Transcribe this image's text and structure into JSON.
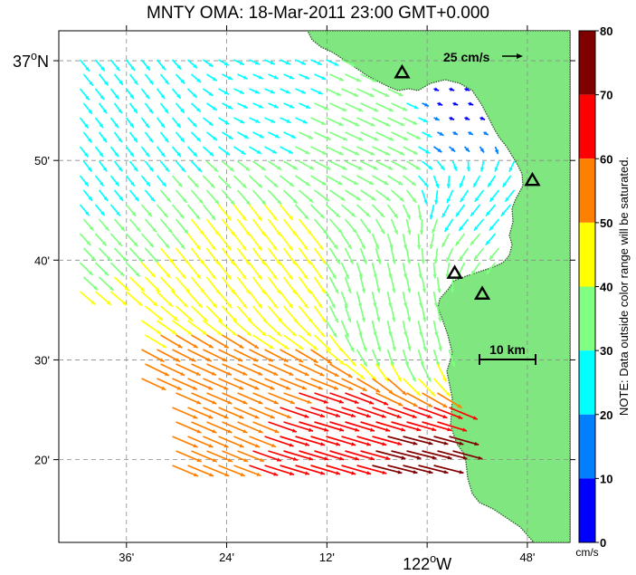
{
  "title": "MNTY OMA: 18-Mar-2011 23:00 GMT+0.000",
  "axes": {
    "lat_labels": [
      {
        "text": "37",
        "deg": true,
        "hemi": "N",
        "lat": 37.0,
        "big": true
      },
      {
        "text": "50'",
        "lat": 36.8333
      },
      {
        "text": "40'",
        "lat": 36.6667
      },
      {
        "text": "30'",
        "lat": 36.5
      },
      {
        "text": "20'",
        "lat": 36.3333
      }
    ],
    "lon_labels": [
      {
        "text": "36'",
        "lon": -122.6
      },
      {
        "text": "24'",
        "lon": -122.4
      },
      {
        "text": "12'",
        "lon": -122.2
      },
      {
        "text": "122",
        "deg": true,
        "hemi": "W",
        "lon": -122.0,
        "big": true
      },
      {
        "text": "48'",
        "lon": -121.8
      }
    ],
    "lon_range": [
      -122.735,
      -121.715
    ],
    "lat_range": [
      36.195,
      37.05
    ],
    "grid": true
  },
  "reference_vector": {
    "label": "25 cm/s",
    "speed_cm_s": 25
  },
  "scale_bar": {
    "label": "10 km",
    "length_km": 10
  },
  "colorbar": {
    "ticks": [
      "0",
      "10",
      "20",
      "30",
      "40",
      "50",
      "60",
      "70",
      "80"
    ],
    "unit": "cm/s",
    "note": "NOTE: Data outside color range will be saturated.",
    "colors": [
      "#0000ff",
      "#0080ff",
      "#00ffff",
      "#80ff80",
      "#ffff00",
      "#ff8000",
      "#ff0000",
      "#800000"
    ]
  },
  "land_color": "#80e680",
  "sites": [
    {
      "lon": -122.05,
      "lat": 36.98
    },
    {
      "lon": -121.79,
      "lat": 36.8
    },
    {
      "lon": -121.945,
      "lat": 36.645
    },
    {
      "lon": -121.89,
      "lat": 36.61
    }
  ],
  "current_vectors": [
    {
      "region": "northwest",
      "lon": -122.7,
      "lat": 36.98,
      "u_cm_s": 14,
      "v_cm_s": -17,
      "speed_cm_s": 30
    },
    {
      "region": "northwest",
      "lon": -122.62,
      "lat": 36.92,
      "u_cm_s": 12,
      "v_cm_s": -16,
      "speed_cm_s": 25
    },
    {
      "region": "north-central",
      "lon": -122.3,
      "lat": 36.96,
      "u_cm_s": 18,
      "v_cm_s": -8,
      "speed_cm_s": 22
    },
    {
      "region": "north-central",
      "lon": -122.15,
      "lat": 36.9,
      "u_cm_s": 24,
      "v_cm_s": -11,
      "speed_cm_s": 40
    },
    {
      "region": "northeast-bay",
      "lon": -121.92,
      "lat": 36.95,
      "u_cm_s": 6,
      "v_cm_s": -2,
      "speed_cm_s": 8
    },
    {
      "region": "east-coast",
      "lon": -121.85,
      "lat": 36.72,
      "u_cm_s": -12,
      "v_cm_s": -14,
      "speed_cm_s": 30
    },
    {
      "region": "central",
      "lon": -122.35,
      "lat": 36.68,
      "u_cm_s": 14,
      "v_cm_s": -19,
      "speed_cm_s": 42
    },
    {
      "region": "bay-mouth",
      "lon": -122.05,
      "lat": 36.6,
      "u_cm_s": 4,
      "v_cm_s": -20,
      "speed_cm_s": 32
    },
    {
      "region": "south",
      "lon": -122.4,
      "lat": 36.42,
      "u_cm_s": 28,
      "v_cm_s": -12,
      "speed_cm_s": 55
    },
    {
      "region": "south",
      "lon": -122.25,
      "lat": 36.36,
      "u_cm_s": 34,
      "v_cm_s": -10,
      "speed_cm_s": 65
    },
    {
      "region": "south-east",
      "lon": -122.05,
      "lat": 36.32,
      "u_cm_s": 24,
      "v_cm_s": -6,
      "speed_cm_s": 72
    }
  ]
}
